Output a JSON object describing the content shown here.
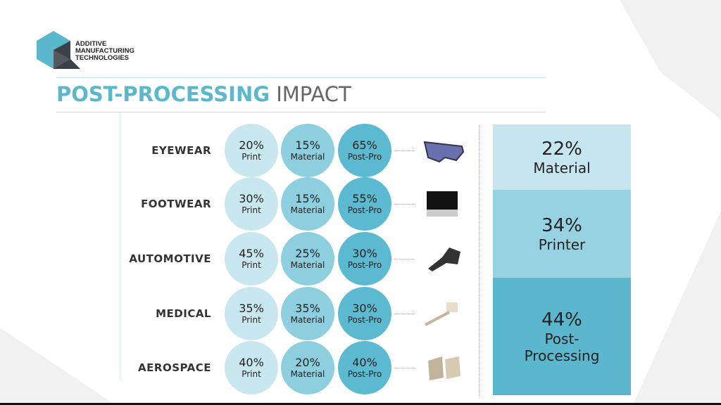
{
  "logo": {
    "lines": [
      "ADDITIVE",
      "MANUFACTURING",
      "TECHNOLOGIES"
    ]
  },
  "title": {
    "highlight": "POST-PROCESSING",
    "rest": "IMPACT"
  },
  "colors": {
    "print": "#c9e7ef",
    "material": "#8dcfdf",
    "postpro": "#5bb9d0",
    "accent": "#5ab8cd"
  },
  "rows": [
    {
      "label": "EYEWEAR",
      "print": "20%",
      "material": "15%",
      "postpro": "65%",
      "image": "eyewear-icon"
    },
    {
      "label": "FOOTWEAR",
      "print": "30%",
      "material": "15%",
      "postpro": "55%",
      "image": "footwear-icon"
    },
    {
      "label": "AUTOMOTIVE",
      "print": "45%",
      "material": "25%",
      "postpro": "30%",
      "image": "automotive-part-icon"
    },
    {
      "label": "MEDICAL",
      "print": "35%",
      "material": "35%",
      "postpro": "30%",
      "image": "medical-implant-icon"
    },
    {
      "label": "AEROSPACE",
      "print": "40%",
      "material": "20%",
      "postpro": "40%",
      "image": "aerospace-part-icon"
    }
  ],
  "circle_labels": {
    "print": "Print",
    "material": "Material",
    "postpro": "Post-Pro"
  },
  "summary": [
    {
      "pct": "22%",
      "label": "Material",
      "color": "#c6e6ef"
    },
    {
      "pct": "34%",
      "label": "Printer",
      "color": "#96d2e1"
    },
    {
      "pct": "44%",
      "label": "Post-\nProcessing",
      "color": "#5ab7cd"
    }
  ]
}
